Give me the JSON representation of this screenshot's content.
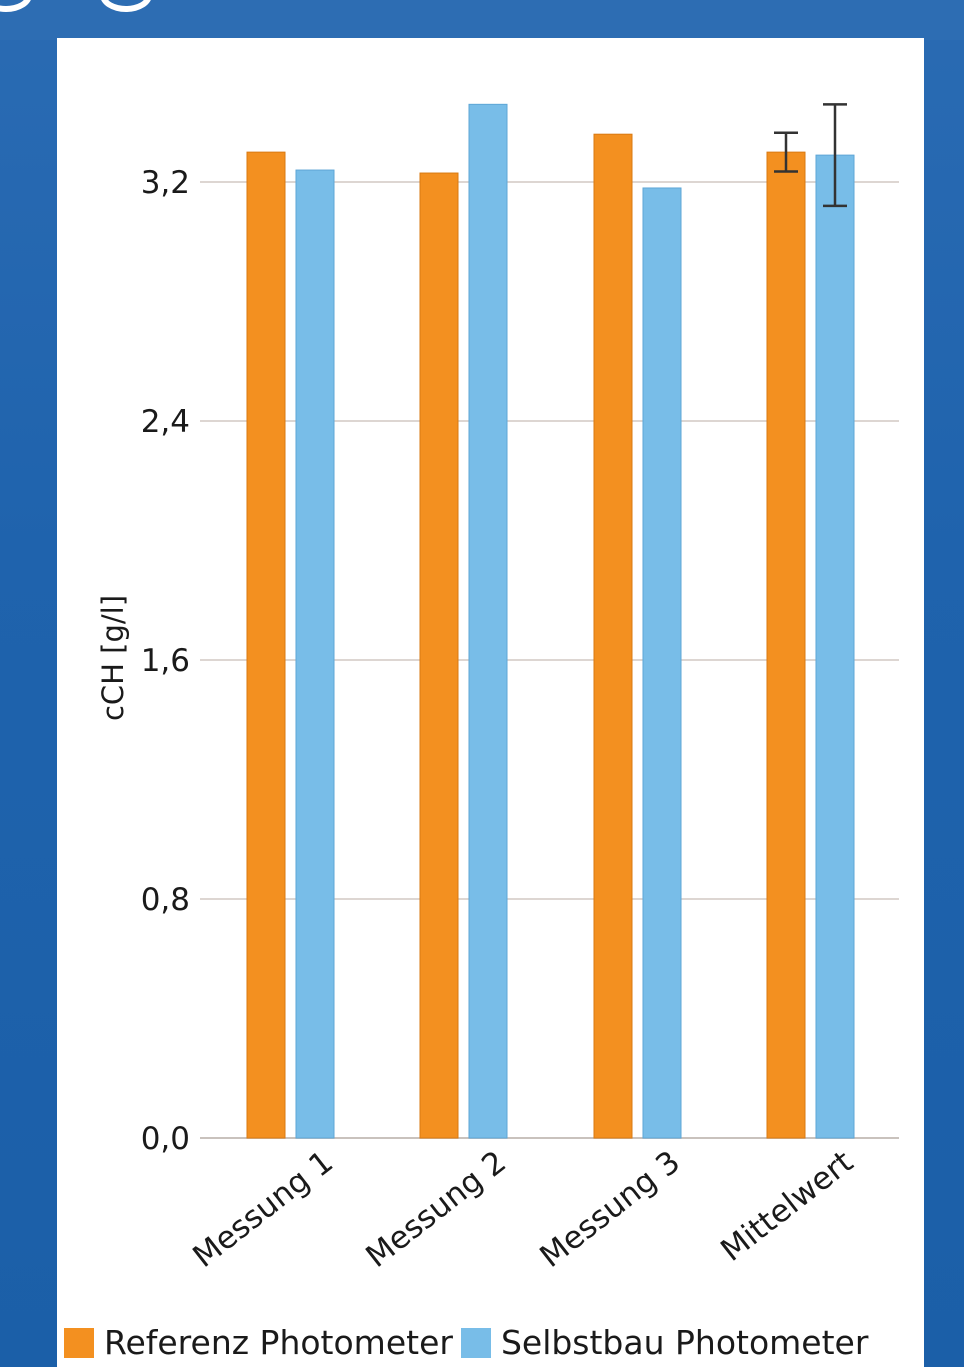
{
  "chart_data": {
    "type": "bar",
    "title": "",
    "xlabel": "",
    "ylabel": "cCH [g/l]",
    "ylim": [
      0,
      3.44
    ],
    "yticks": [
      "0,0",
      "0,8",
      "1,6",
      "2,4",
      "3,2"
    ],
    "ytick_values": [
      0,
      0.8,
      1.6,
      2.4,
      3.2
    ],
    "categories": [
      "Messung 1",
      "Messung 2",
      "Messung 3",
      "Mittelwert"
    ],
    "series": [
      {
        "name": "Referenz Photometer",
        "color": "#f39020",
        "values": [
          3.3,
          3.23,
          3.36,
          3.3
        ],
        "error": [
          null,
          null,
          null,
          0.065
        ]
      },
      {
        "name": "Selbstbau Photometer",
        "color": "#78bde8",
        "values": [
          3.24,
          3.46,
          3.18,
          3.29
        ],
        "error": [
          null,
          null,
          null,
          0.17
        ]
      }
    ],
    "grid": true,
    "legend_position": "bottom"
  }
}
